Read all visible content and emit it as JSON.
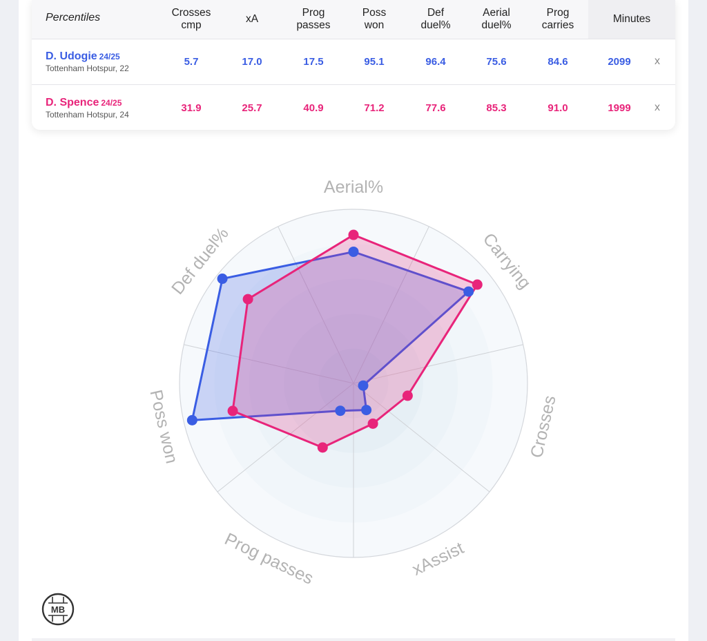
{
  "table": {
    "title": "Percentiles",
    "columns": [
      {
        "label": "Crosses\ncmp"
      },
      {
        "label": "xA"
      },
      {
        "label": "Prog\npasses"
      },
      {
        "label": "Poss\nwon"
      },
      {
        "label": "Def\nduel%"
      },
      {
        "label": "Aerial\nduel%"
      },
      {
        "label": "Prog\ncarries"
      }
    ],
    "minutes_label": "Minutes",
    "players": [
      {
        "name": "D. Udogie",
        "season": "24/25",
        "team": "Tottenham Hotspur, 22",
        "values": [
          "5.7",
          "17.0",
          "17.5",
          "95.1",
          "96.4",
          "75.6",
          "84.6"
        ],
        "minutes": "2099",
        "remove": "x"
      },
      {
        "name": "D. Spence",
        "season": "24/25",
        "team": "Tottenham Hotspur, 24",
        "values": [
          "31.9",
          "25.7",
          "40.9",
          "71.2",
          "77.6",
          "85.3",
          "91.0"
        ],
        "minutes": "1999",
        "remove": "x"
      }
    ]
  },
  "chart_data": {
    "type": "radar",
    "axes": [
      "Aerial%",
      "Carrying",
      "Crosses",
      "xAssist",
      "Prog passes",
      "Poss won",
      "Def duel%"
    ],
    "range": [
      0,
      100
    ],
    "series": [
      {
        "name": "D. Udogie",
        "color": "#3a5de3",
        "values": [
          75.6,
          84.6,
          5.7,
          17.0,
          17.5,
          95.1,
          96.4
        ]
      },
      {
        "name": "D. Spence",
        "color": "#e8247a",
        "values": [
          85.3,
          91.0,
          31.9,
          25.7,
          40.9,
          71.2,
          77.6
        ]
      }
    ]
  },
  "logo": {
    "text": "MB",
    "icon": "mb-logo-icon"
  }
}
